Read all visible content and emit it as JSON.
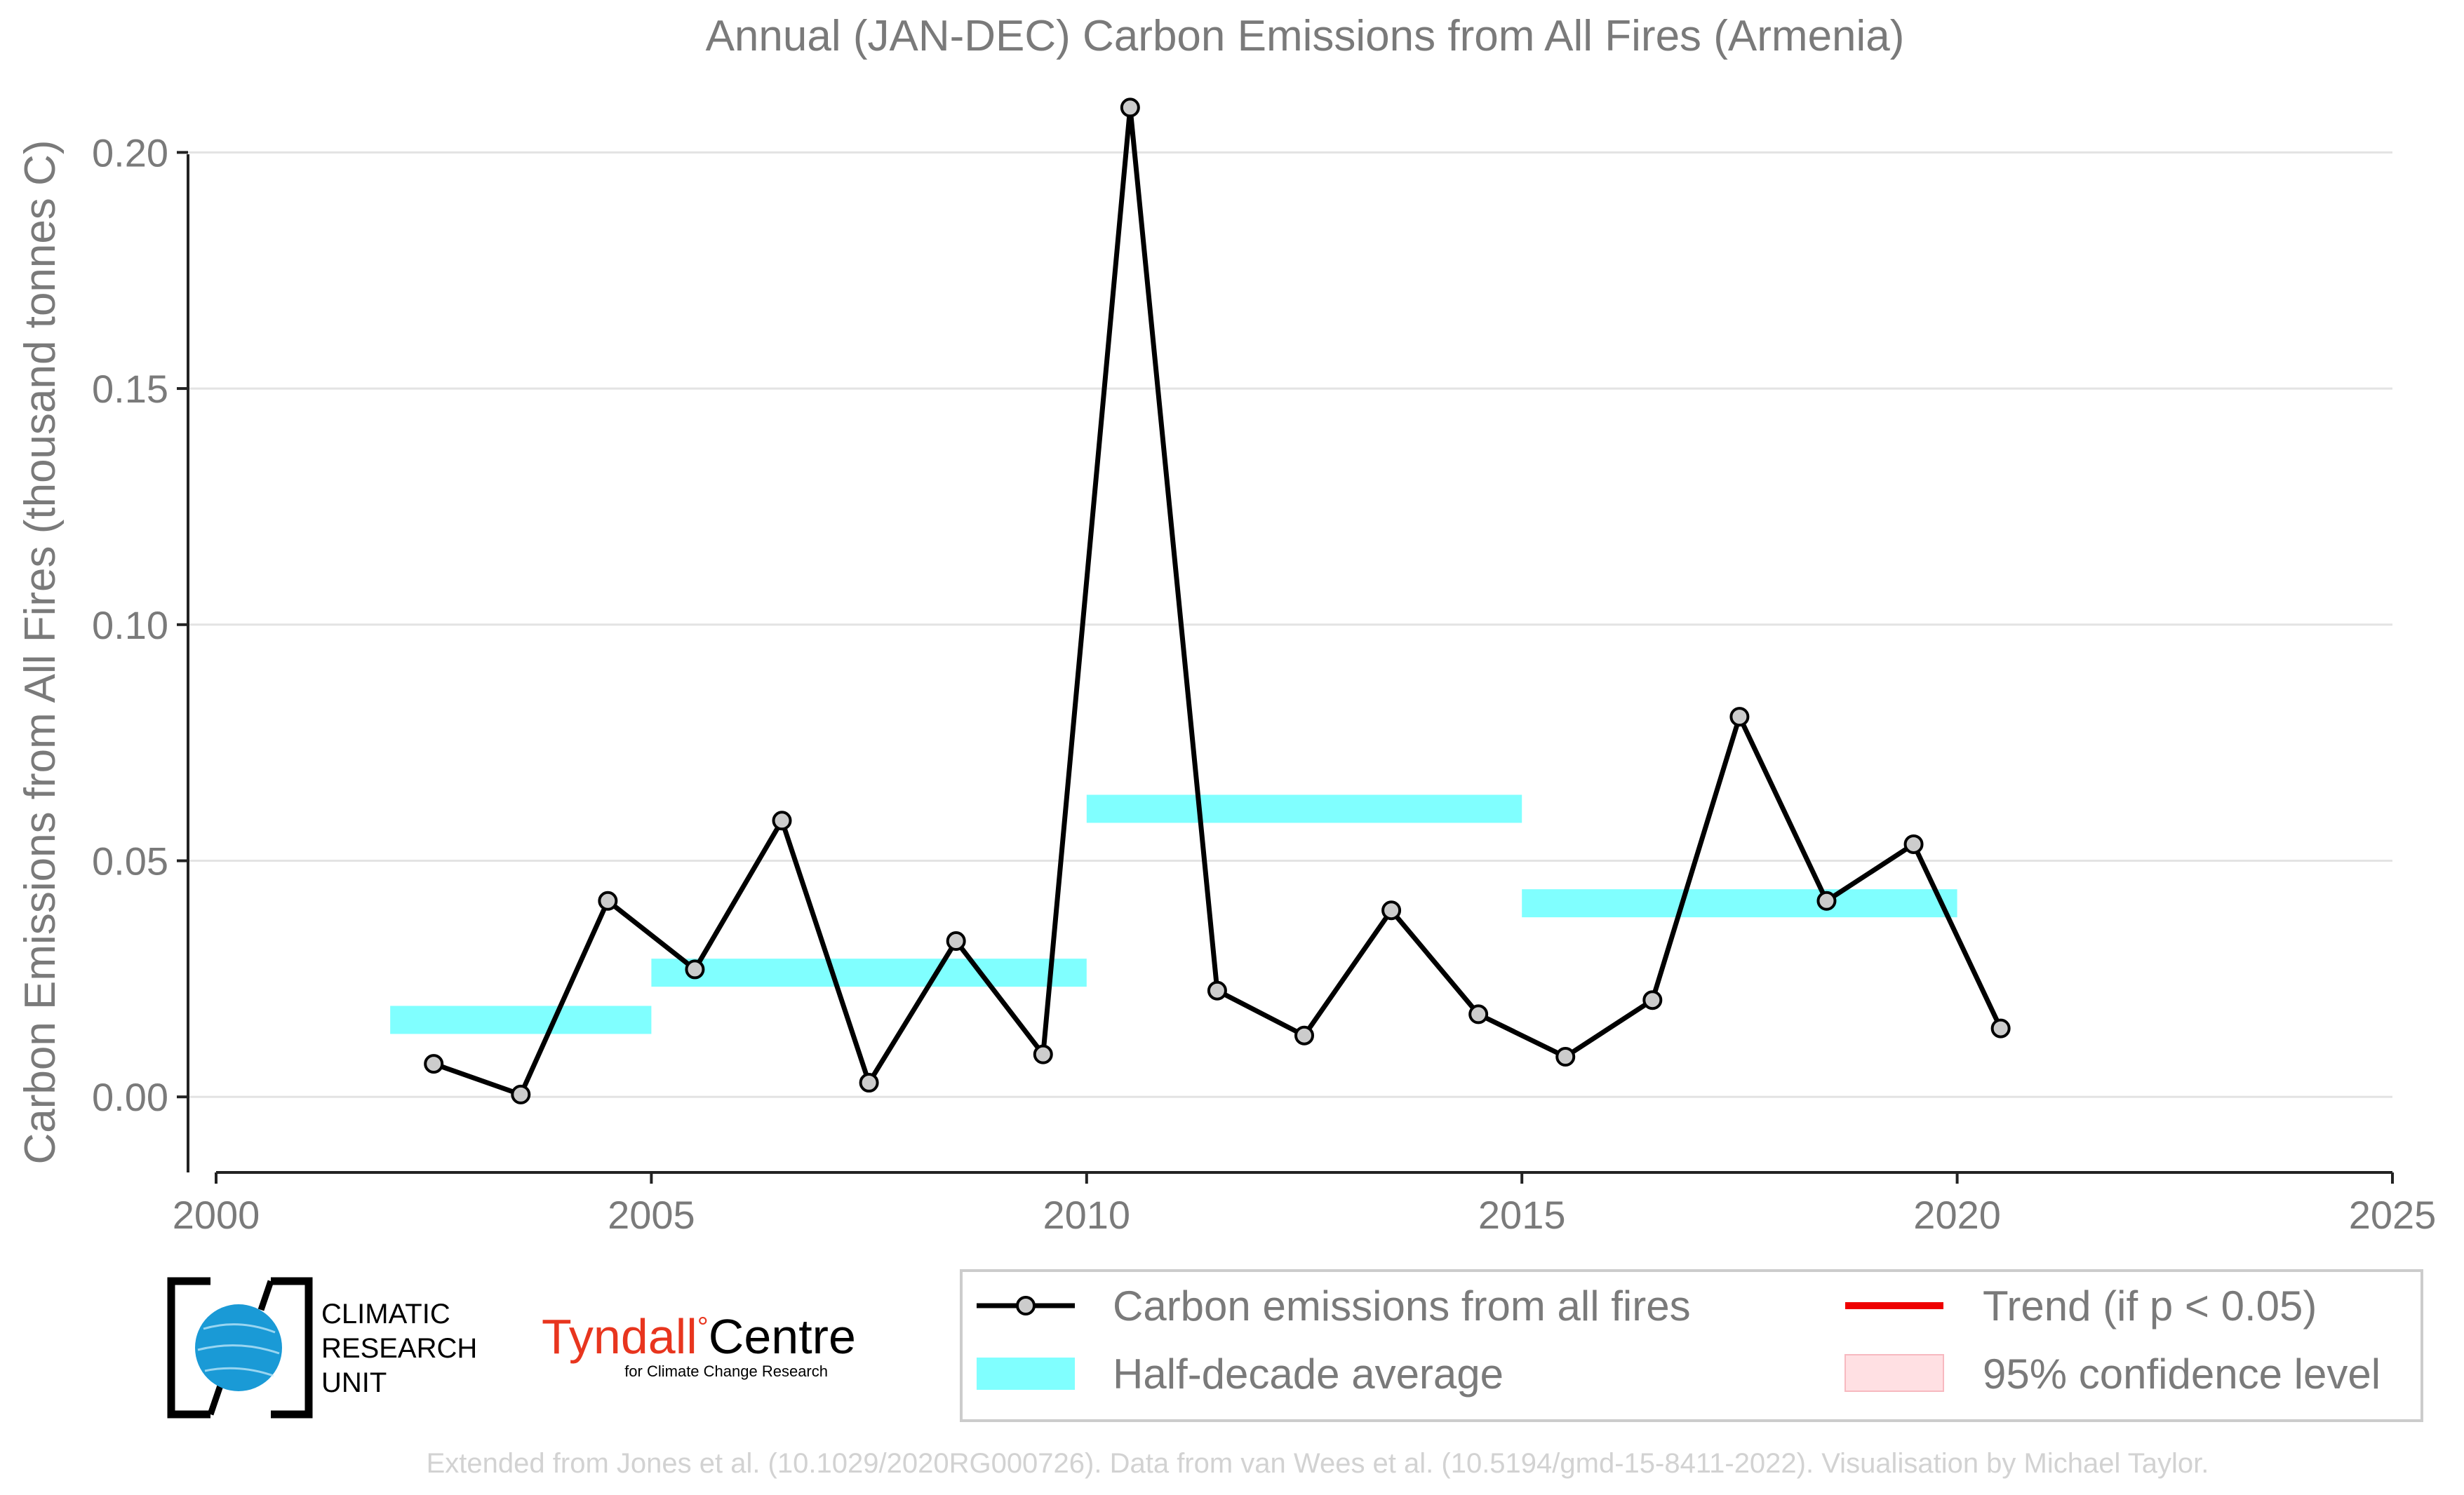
{
  "chart_data": {
    "type": "line",
    "title": "Annual (JAN-DEC) Carbon Emissions from All Fires (Armenia)",
    "xlabel": "",
    "ylabel": "Carbon Emissions from All Fires (thousand tonnes C)",
    "xlim": [
      2000,
      2025
    ],
    "ylim": [
      -0.016,
      0.21
    ],
    "x_ticks": [
      "2000",
      "2005",
      "2010",
      "2015",
      "2020",
      "2025"
    ],
    "y_ticks": [
      "0.00",
      "0.05",
      "0.10",
      "0.15",
      "0.20"
    ],
    "grid": "horizontal",
    "series": [
      {
        "name": "Carbon emissions from all fires",
        "color": "#000000",
        "marker_fill": "#cccccc",
        "x": [
          2002.5,
          2003.5,
          2004.5,
          2005.5,
          2006.5,
          2007.5,
          2008.5,
          2009.5,
          2010.5,
          2011.5,
          2012.5,
          2013.5,
          2014.5,
          2015.5,
          2016.5,
          2017.5,
          2018.5,
          2019.5,
          2020.5
        ],
        "values": [
          0.007,
          0.0005,
          0.0415,
          0.027,
          0.0585,
          0.003,
          0.033,
          0.009,
          0.2095,
          0.0225,
          0.013,
          0.0395,
          0.0175,
          0.0085,
          0.0205,
          0.0805,
          0.0415,
          0.0535,
          0.0145
        ]
      }
    ],
    "half_decade_average": {
      "name": "Half-decade average",
      "color": "#80ffff",
      "segments": [
        {
          "start": 2002,
          "end": 2005,
          "value": 0.0163
        },
        {
          "start": 2005,
          "end": 2010,
          "value": 0.0263
        },
        {
          "start": 2010,
          "end": 2015,
          "value": 0.061
        },
        {
          "start": 2015,
          "end": 2020,
          "value": 0.041
        }
      ]
    },
    "legend": {
      "placement": "bottom-right",
      "entries": [
        {
          "label": "Carbon emissions from all fires"
        },
        {
          "label": "Trend (if p < 0.05)"
        },
        {
          "label": "Half-decade average"
        },
        {
          "label": "95% confidence level"
        }
      ],
      "colors": {
        "trend": "#ee0000",
        "confidence": "#ffe0e3"
      }
    }
  },
  "logos": {
    "cru": [
      "CLIMATIC",
      "RESEARCH",
      "UNIT"
    ],
    "tyndall_main": "Tyndall",
    "tyndall_degree": "°",
    "tyndall_centre": "Centre",
    "tyndall_sub": "for Climate Change Research",
    "tyndall_color": "#e8351e",
    "globe_color": "#1a9ad6"
  },
  "credit": "Extended from Jones et al. (10.1029/2020RG000726). Data from van Wees et al. (10.5194/gmd-15-8411-2022). Visualisation by Michael Taylor."
}
